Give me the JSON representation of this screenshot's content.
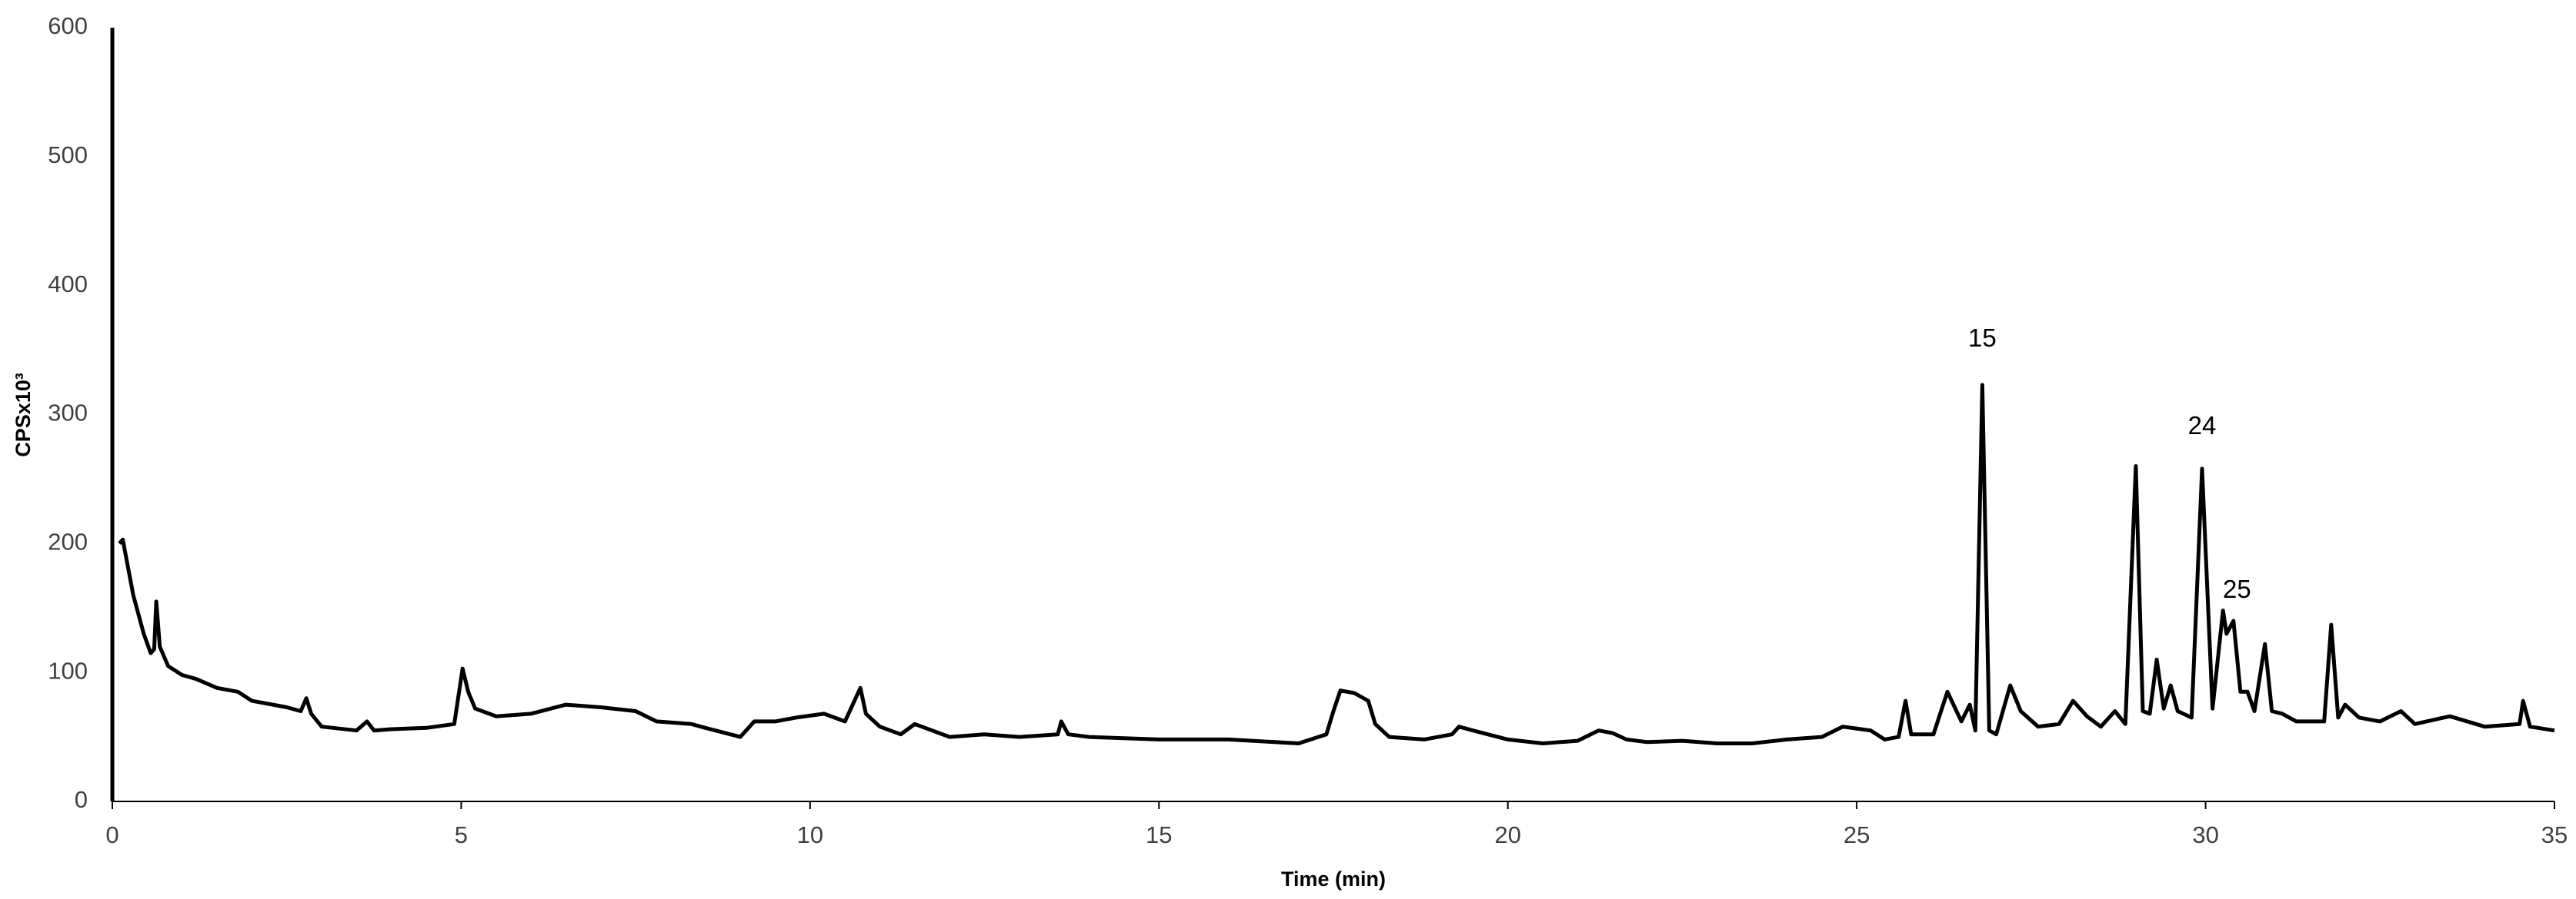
{
  "chart_data": {
    "type": "line",
    "x_label": "Time (min)",
    "y_label": "CPSx10³",
    "xlim": [
      0,
      35
    ],
    "xticks": [
      0,
      5,
      10,
      15,
      20,
      25,
      30,
      35
    ],
    "ylim": [
      0,
      600
    ],
    "yticks": [
      0,
      100,
      200,
      300,
      400,
      500,
      600
    ],
    "grid": false,
    "x": [
      0.1,
      0.15,
      0.3,
      0.45,
      0.55,
      0.6,
      0.63,
      0.68,
      0.8,
      1.0,
      1.2,
      1.5,
      1.8,
      2.0,
      2.5,
      2.7,
      2.78,
      2.85,
      3.0,
      3.5,
      3.65,
      3.75,
      4.0,
      4.5,
      4.9,
      5.02,
      5.1,
      5.2,
      5.5,
      6.0,
      6.5,
      7.0,
      7.5,
      7.8,
      8.3,
      8.5,
      9.0,
      9.2,
      9.5,
      9.8,
      10.2,
      10.5,
      10.72,
      10.8,
      11.0,
      11.3,
      11.5,
      11.6,
      12.0,
      12.5,
      13.0,
      13.55,
      13.6,
      13.7,
      14.0,
      15,
      16,
      17,
      17.4,
      17.5,
      17.6,
      17.8,
      18.0,
      18.1,
      18.3,
      18.8,
      19.2,
      19.3,
      19.5,
      20,
      20.5,
      21,
      21.3,
      21.5,
      21.7,
      22,
      22.5,
      23,
      23.5,
      24,
      24.5,
      24.8,
      25.2,
      25.4,
      25.6,
      25.7,
      25.78,
      26.1,
      26.3,
      26.5,
      26.62,
      26.7,
      26.8,
      26.9,
      27.0,
      27.2,
      27.35,
      27.6,
      27.9,
      28.1,
      28.3,
      28.5,
      28.7,
      28.85,
      29.0,
      29.1,
      29.2,
      29.3,
      29.4,
      29.5,
      29.6,
      29.8,
      29.95,
      30.1,
      30.25,
      30.3,
      30.4,
      30.5,
      30.6,
      30.7,
      30.85,
      30.95,
      31.1,
      31.3,
      31.7,
      31.8,
      31.9,
      32.0,
      32.2,
      32.5,
      32.8,
      33,
      33.5,
      34,
      34.5,
      34.55,
      34.65,
      35
    ],
    "series": [
      {
        "color": "#000000",
        "values": [
          200,
          203,
          160,
          130,
          115,
          118,
          155,
          120,
          105,
          98,
          95,
          88,
          85,
          78,
          73,
          70,
          80,
          68,
          58,
          55,
          62,
          55,
          56,
          57,
          60,
          103,
          85,
          72,
          66,
          68,
          75,
          73,
          70,
          62,
          60,
          57,
          50,
          62,
          62,
          65,
          68,
          62,
          88,
          68,
          58,
          52,
          60,
          58,
          50,
          52,
          50,
          52,
          62,
          52,
          50,
          48,
          48,
          45,
          52,
          70,
          86,
          84,
          78,
          60,
          50,
          48,
          52,
          58,
          55,
          48,
          45,
          47,
          55,
          53,
          48,
          46,
          47,
          45,
          45,
          48,
          50,
          58,
          55,
          48,
          50,
          78,
          52,
          52,
          85,
          62,
          75,
          55,
          323,
          55,
          52,
          90,
          70,
          58,
          60,
          78,
          66,
          58,
          70,
          60,
          260,
          70,
          68,
          110,
          72,
          90,
          70,
          65,
          258,
          72,
          148,
          130,
          140,
          85,
          85,
          70,
          122,
          70,
          68,
          62,
          62,
          137,
          65,
          75,
          65,
          62,
          70,
          60,
          66,
          58,
          60,
          78,
          58,
          55
        ]
      }
    ],
    "annotations": [
      {
        "text": "15",
        "x": 26.8,
        "y": 358
      },
      {
        "text": "24",
        "x": 29.95,
        "y": 290
      },
      {
        "text": "25",
        "x": 30.45,
        "y": 163
      }
    ]
  }
}
